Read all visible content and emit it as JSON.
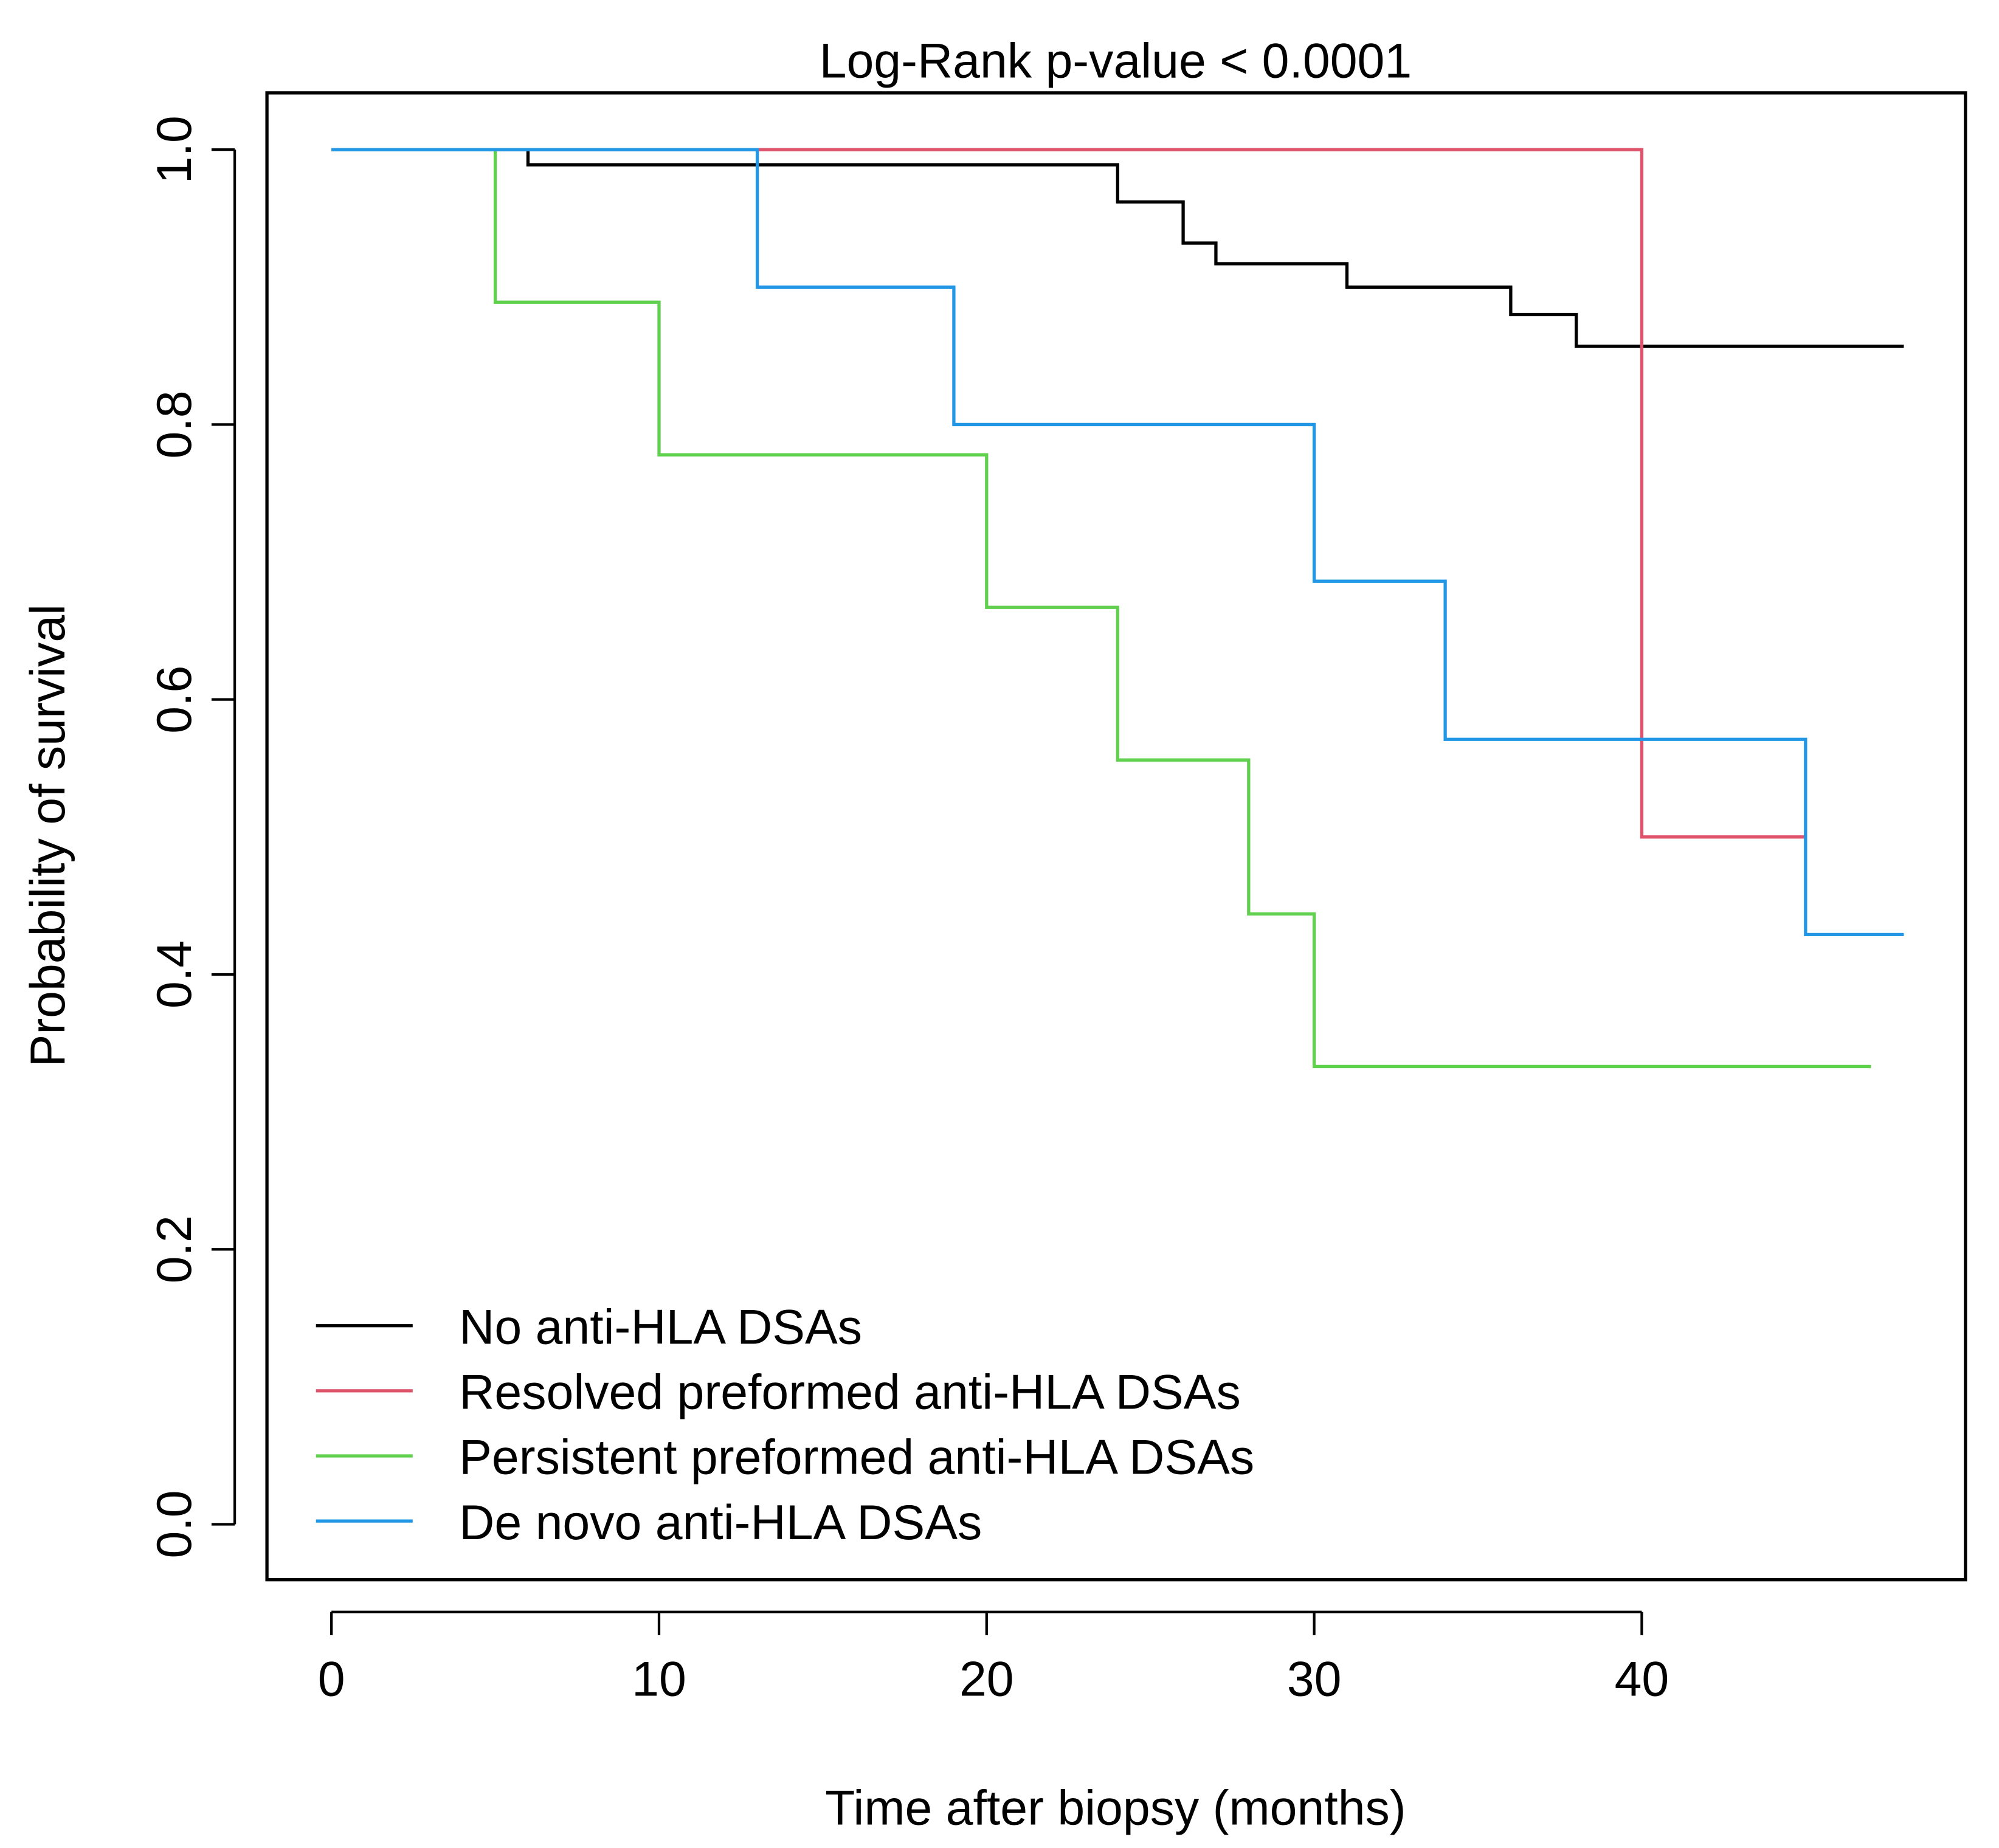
{
  "chart_data": {
    "type": "line",
    "subtype": "kaplan-meier-step",
    "title": "Log-Rank p-value < 0.0001",
    "xlabel": "Time after biopsy (months)",
    "ylabel": "Probability of survival",
    "xlim": [
      -2,
      50
    ],
    "ylim": [
      -0.04,
      1.04
    ],
    "xticks": [
      0,
      10,
      20,
      30,
      40
    ],
    "xtick_labels": [
      "0",
      "10",
      "20",
      "30",
      "40"
    ],
    "yticks": [
      0,
      0.2,
      0.4,
      0.6,
      0.8,
      1.0
    ],
    "ytick_labels": [
      "0.0",
      "0.2",
      "0.4",
      "0.6",
      "0.8",
      "1.0"
    ],
    "grid": false,
    "legend_position": "bottom-left",
    "series": [
      {
        "name": "No anti-HLA DSAs",
        "color": "#000000",
        "x": [
          0,
          6,
          24,
          26,
          27,
          31,
          36,
          38,
          48
        ],
        "y": [
          1.0,
          0.989,
          0.962,
          0.932,
          0.917,
          0.9,
          0.88,
          0.857,
          0.857
        ]
      },
      {
        "name": "Resolved preformed anti-HLA DSAs",
        "color": "#DF536B",
        "x": [
          0,
          40,
          45
        ],
        "y": [
          1.0,
          0.5,
          0.5
        ]
      },
      {
        "name": "Persistent preformed anti-HLA DSAs",
        "color": "#61D04F",
        "x": [
          0,
          5,
          10,
          20,
          24,
          28,
          30,
          47
        ],
        "y": [
          1.0,
          0.889,
          0.778,
          0.667,
          0.556,
          0.444,
          0.333,
          0.333
        ]
      },
      {
        "name": "De novo anti-HLA DSAs",
        "color": "#2297E6",
        "x": [
          0,
          13,
          19,
          30,
          34,
          45,
          48
        ],
        "y": [
          1.0,
          0.9,
          0.8,
          0.686,
          0.571,
          0.429,
          0.429
        ]
      }
    ]
  }
}
